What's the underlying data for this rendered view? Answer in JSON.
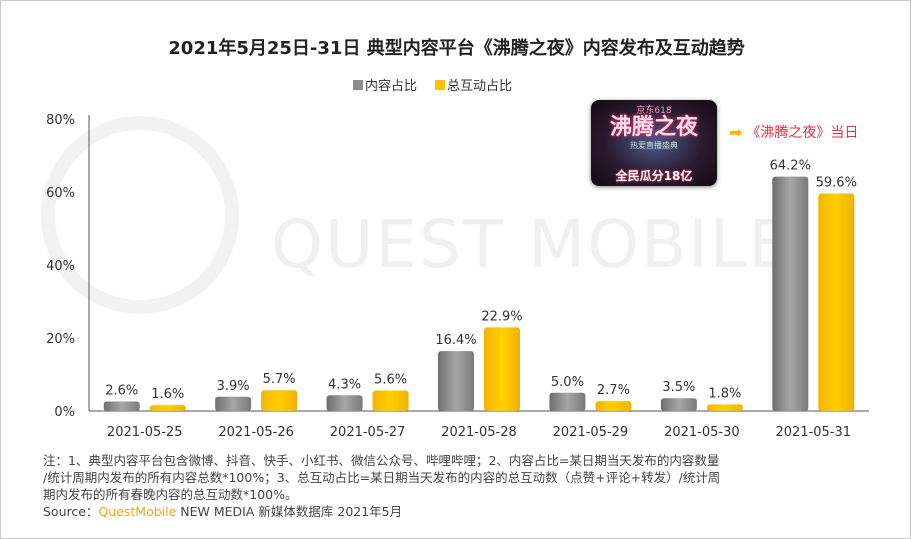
{
  "title": "2021年5月25日-31日 典型内容平台《沸腾之夜》内容发布及互动趋势",
  "watermark": "QUEST MOBILE",
  "promo_image": {
    "text_top": "京东618",
    "text_main": "沸腾之夜",
    "text_sub": "热爱直播盛典",
    "text_bottom": "全民瓜分18亿"
  },
  "callout": {
    "icon": "arrow-right-icon",
    "label": "《沸腾之夜》当日",
    "color": "#e8323c"
  },
  "chart_data": {
    "type": "bar",
    "title": "2021年5月25日-31日 典型内容平台《沸腾之夜》内容发布及互动趋势",
    "categories": [
      "2021-05-25",
      "2021-05-26",
      "2021-05-27",
      "2021-05-28",
      "2021-05-29",
      "2021-05-30",
      "2021-05-31"
    ],
    "series": [
      {
        "name": "内容占比",
        "color": "#8c8c8c",
        "values": [
          2.6,
          3.9,
          4.3,
          16.4,
          5.0,
          3.5,
          64.2
        ],
        "labels": [
          "2.6%",
          "3.9%",
          "4.3%",
          "16.4%",
          "5.0%",
          "3.5%",
          "64.2%"
        ]
      },
      {
        "name": "总互动占比",
        "color": "#ffc000",
        "values": [
          1.6,
          5.7,
          5.6,
          22.9,
          2.7,
          1.8,
          59.6
        ],
        "labels": [
          "1.6%",
          "5.7%",
          "5.6%",
          "22.9%",
          "2.7%",
          "1.8%",
          "59.6%"
        ]
      }
    ],
    "ylim": [
      0,
      80
    ],
    "yticks": [
      "0%",
      "20%",
      "40%",
      "60%",
      "80%"
    ],
    "ytick_values": [
      0,
      20,
      40,
      60,
      80
    ],
    "grid": false,
    "legend": "top-center",
    "xlabel": "",
    "ylabel": ""
  },
  "notes": {
    "line1": "注：1、典型内容平台包含微博、抖音、快手、小红书、微信公众号、哔哩哔哩；2、内容占比=某日期当天发布的内容数量",
    "line2": "/统计周期内发布的所有内容总数*100%；3、总互动占比=某日期当天发布的内容的总互动数（点赞+评论+转发）/统计周",
    "line3": "期内发布的所有春晚内容的总互动数*100%。",
    "source_prefix": "Source：",
    "source_brand": "QuestMobile",
    "source_rest": " NEW MEDIA 新媒体数据库 2021年5月"
  }
}
